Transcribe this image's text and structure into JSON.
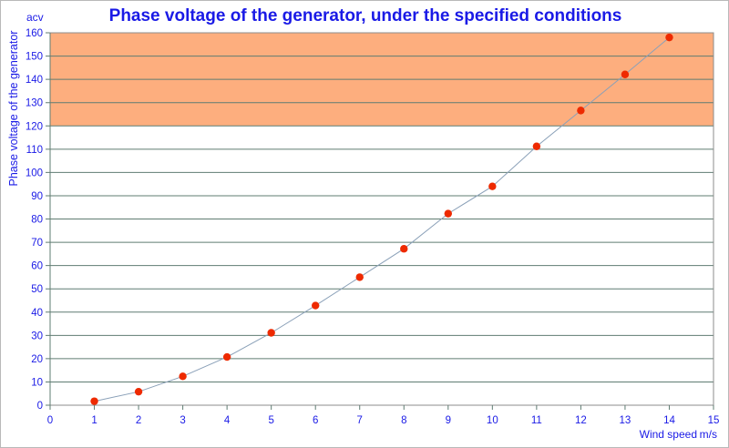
{
  "chart_data": {
    "type": "line",
    "title": "Phase voltage of the generator, under the specified conditions",
    "xlabel": "Wind speed",
    "x_unit": "m/s",
    "ylabel": "Phase voltage of the generator",
    "y_unit": "acv",
    "xlim": [
      0,
      15
    ],
    "ylim": [
      0,
      160
    ],
    "x_ticks": [
      0,
      1,
      2,
      3,
      4,
      5,
      6,
      7,
      8,
      9,
      10,
      11,
      12,
      13,
      14,
      15
    ],
    "y_ticks": [
      0,
      10,
      20,
      30,
      40,
      50,
      60,
      70,
      80,
      90,
      100,
      110,
      120,
      130,
      140,
      150,
      160
    ],
    "grid": true,
    "highlight_band": {
      "from": 120,
      "to": 160,
      "color": "#fdae7e"
    },
    "series": [
      {
        "x": [
          1,
          2,
          3,
          4,
          5,
          6,
          7,
          8,
          9,
          10,
          11,
          12,
          13,
          14
        ],
        "values": [
          1.7,
          5.8,
          12.4,
          20.7,
          31.1,
          42.8,
          55.0,
          67.2,
          82.3,
          94.0,
          111.2,
          126.6,
          142.1,
          158.0
        ],
        "marker_color": "#ee2a00",
        "line_color": "#8aa0b8"
      }
    ]
  }
}
